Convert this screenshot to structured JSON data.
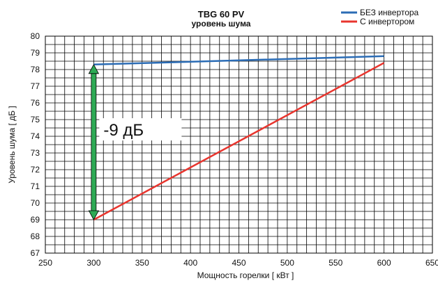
{
  "chart_data": {
    "type": "line",
    "title": "TBG 60 PV",
    "subtitle": "уровень шума",
    "xlabel": "Мощность горелки  [ кВт ]",
    "ylabel": "Уровень шума  [ дБ ]",
    "xlim": [
      250,
      650
    ],
    "ylim": [
      67,
      80
    ],
    "x_ticks": [
      250,
      300,
      350,
      400,
      450,
      500,
      550,
      600,
      650
    ],
    "y_ticks": [
      67,
      68,
      69,
      70,
      71,
      72,
      73,
      74,
      75,
      76,
      77,
      78,
      79,
      80
    ],
    "grid": true,
    "legend_position": "top-right",
    "series": [
      {
        "name": "БЕЗ инвертора",
        "color": "#2b6cb5",
        "x": [
          300,
          600
        ],
        "y": [
          78.3,
          78.8
        ]
      },
      {
        "name": "С инвертором",
        "color": "#e8352e",
        "x": [
          300,
          600
        ],
        "y": [
          69.0,
          78.4
        ]
      }
    ],
    "annotation": {
      "text": "-9 дБ",
      "x": 300,
      "y_from": 78.3,
      "y_to": 69.0,
      "color": "#2eaa55"
    }
  }
}
